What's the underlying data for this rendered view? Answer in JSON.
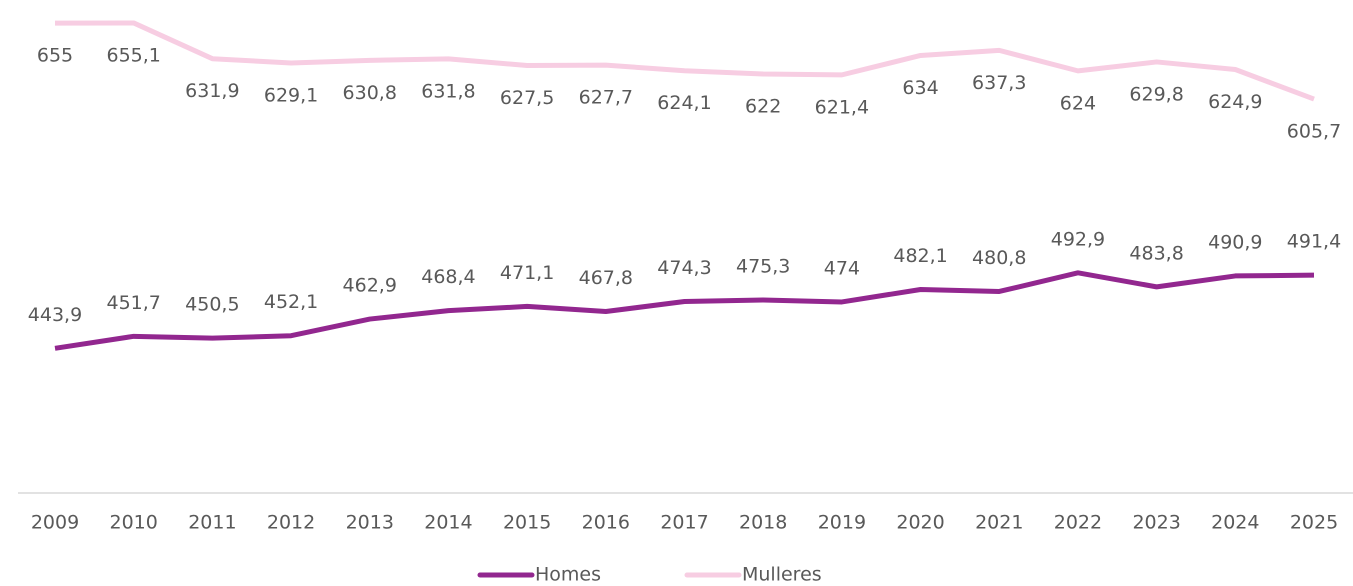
{
  "chart_data": {
    "type": "line",
    "categories": [
      "2009",
      "2010",
      "2011",
      "2012",
      "2013",
      "2014",
      "2015",
      "2016",
      "2017",
      "2018",
      "2019",
      "2020",
      "2021",
      "2022",
      "2023",
      "2024",
      "2025"
    ],
    "series": [
      {
        "name": "Homes",
        "color": "#92278f",
        "values": [
          443.9,
          451.7,
          450.5,
          452.1,
          462.9,
          468.4,
          471.1,
          467.8,
          474.3,
          475.3,
          474,
          482.1,
          480.8,
          492.9,
          483.8,
          490.9,
          491.4
        ],
        "value_labels": [
          "443,9",
          "451,7",
          "450,5",
          "452,1",
          "462,9",
          "468,4",
          "471,1",
          "467,8",
          "474,3",
          "475,3",
          "474",
          "482,1",
          "480,8",
          "492,9",
          "483,8",
          "490,9",
          "491,4"
        ]
      },
      {
        "name": "Mulleres",
        "color": "#f7cde2",
        "values": [
          655,
          655.1,
          631.9,
          629.1,
          630.8,
          631.8,
          627.5,
          627.7,
          624.1,
          622,
          621.4,
          634,
          637.3,
          624,
          629.8,
          624.9,
          605.7
        ],
        "value_labels": [
          "655",
          "655,1",
          "631,9",
          "629,1",
          "630,8",
          "631,8",
          "627,5",
          "627,7",
          "624,1",
          "622",
          "621,4",
          "634",
          "637,3",
          "624",
          "629,8",
          "624,9",
          "605,7"
        ]
      }
    ],
    "ylim": [
      350,
      670
    ],
    "legend": "bottom"
  }
}
